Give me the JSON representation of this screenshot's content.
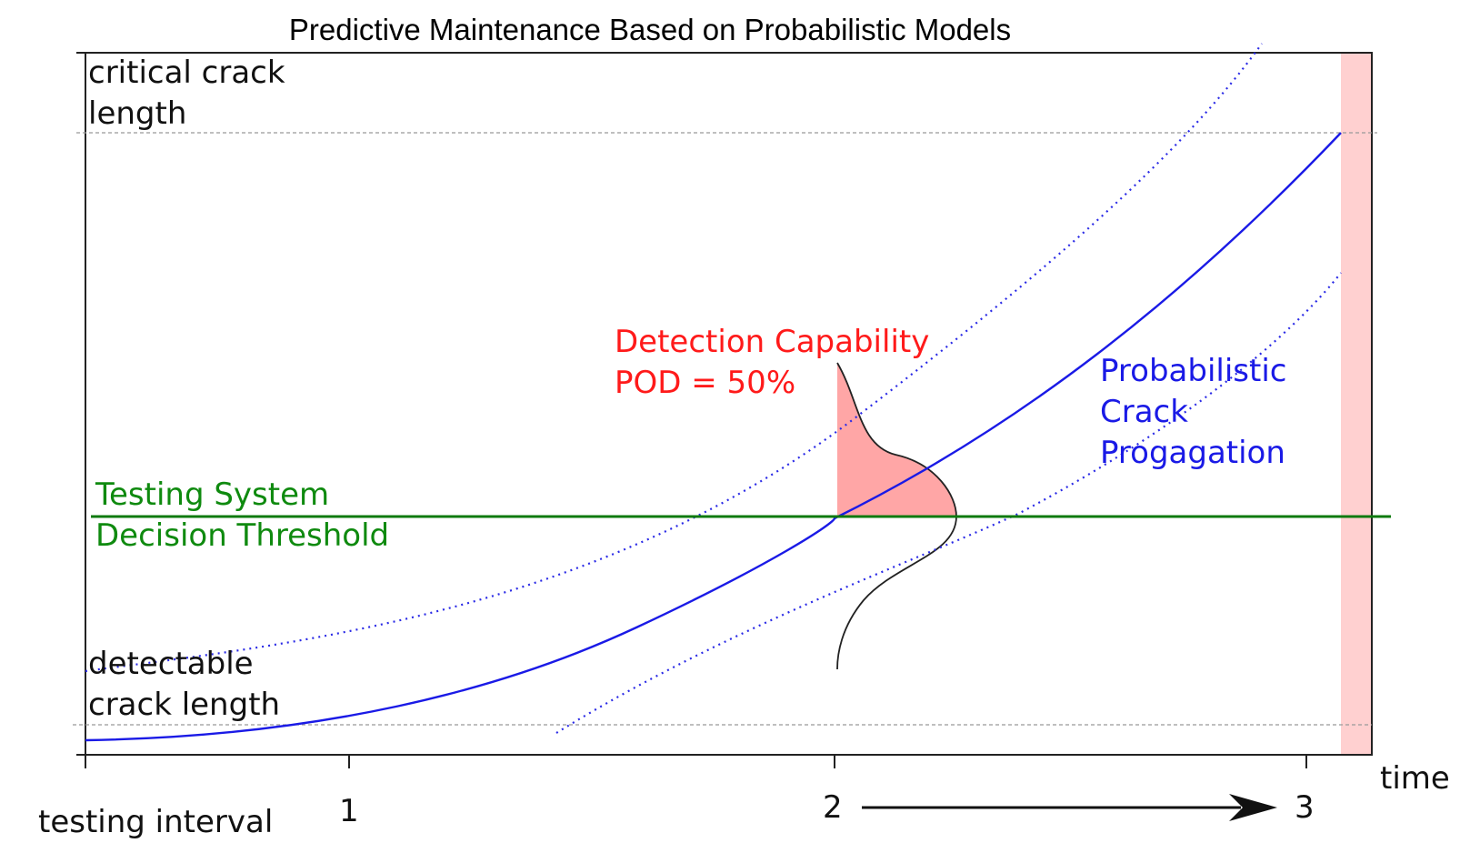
{
  "title": "Predictive Maintenance Based on Probabilistic Models",
  "labels": {
    "critical_crack": [
      "critical crack",
      "length"
    ],
    "detectable_crack": [
      "detectable",
      "crack length"
    ],
    "threshold": [
      "Testing System",
      "Decision Threshold"
    ],
    "detection": [
      "Detection Capability",
      "POD = 50%"
    ],
    "propagation": [
      "Probabilistic",
      "Crack",
      "Progagation"
    ],
    "x_axis_title": "time",
    "x_axis_left": "testing interval"
  },
  "ticks": [
    "1",
    "2",
    "3"
  ],
  "colors": {
    "axis": "#222222",
    "curve": "#1a1ae6",
    "threshold": "#0f7a0f",
    "detection_fill": "#ffa6a6",
    "critical_band": "#ffd0d0",
    "detection_text": "#ff1a1a"
  }
}
